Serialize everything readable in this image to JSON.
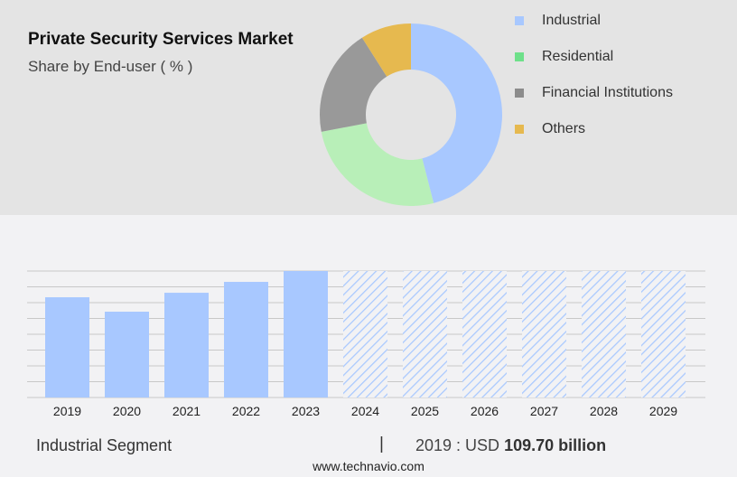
{
  "chart_data": [
    {
      "type": "pie",
      "title": "Private Security Services Market",
      "subtitle": "Share by End-user ( % )",
      "slices": [
        {
          "label": "Industrial",
          "value": 46,
          "color": "#a8c8ff",
          "legend_color": "#a8c8ff"
        },
        {
          "label": "Residential",
          "value": 26,
          "color": "#b8efb8",
          "legend_color": "#6ee08a"
        },
        {
          "label": "Financial Institutions",
          "value": 19,
          "color": "#999999",
          "legend_color": "#8c8c8c"
        },
        {
          "label": "Others",
          "value": 9,
          "color": "#e6b94f",
          "legend_color": "#e6b94f"
        }
      ]
    },
    {
      "type": "bar",
      "categories": [
        "2019",
        "2020",
        "2021",
        "2022",
        "2023",
        "2024",
        "2025",
        "2026",
        "2027",
        "2028",
        "2029"
      ],
      "values": [
        109.7,
        93.9,
        114.6,
        126.5,
        138.4,
        null,
        null,
        null,
        null,
        null,
        null
      ],
      "forecast": [
        false,
        false,
        false,
        false,
        false,
        true,
        true,
        true,
        true,
        true,
        true
      ],
      "ylim": [
        0,
        138.4
      ],
      "grid": true,
      "color": "#a8c8ff"
    }
  ],
  "footer": {
    "segment": "Industrial Segment",
    "separator": "|",
    "year_label": "2019 : USD ",
    "value_label": "109.70 billion",
    "site": "www.technavio.com"
  }
}
